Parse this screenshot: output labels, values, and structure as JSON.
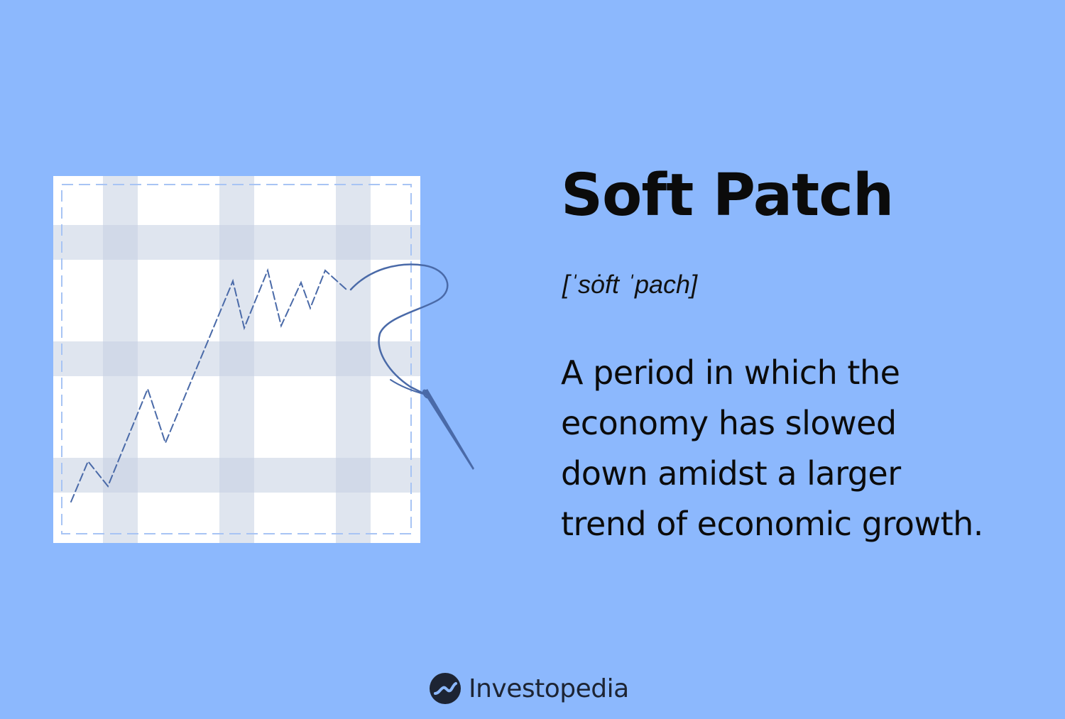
{
  "header": {
    "title": "Soft Patch",
    "pronunciation": "[ˈsȯft ˈpach]"
  },
  "definition": {
    "lines": [
      "A period in which the",
      "economy has slowed",
      "down amidst a larger",
      "trend of economic growth."
    ]
  },
  "brand": {
    "name": "Investopedia",
    "icon": "investopedia-logo-icon"
  },
  "illustration": {
    "icons": [
      "fabric-patch-icon",
      "needle-icon",
      "thread-icon",
      "stitched-trend-line-icon"
    ]
  },
  "colors": {
    "background": "#8cb8fd",
    "patch": "#ffffff",
    "plaid_band": "#c9d3e4",
    "thread": "#4a6aa8",
    "text": "#0b0b0b",
    "brand_text": "#1d2433"
  }
}
